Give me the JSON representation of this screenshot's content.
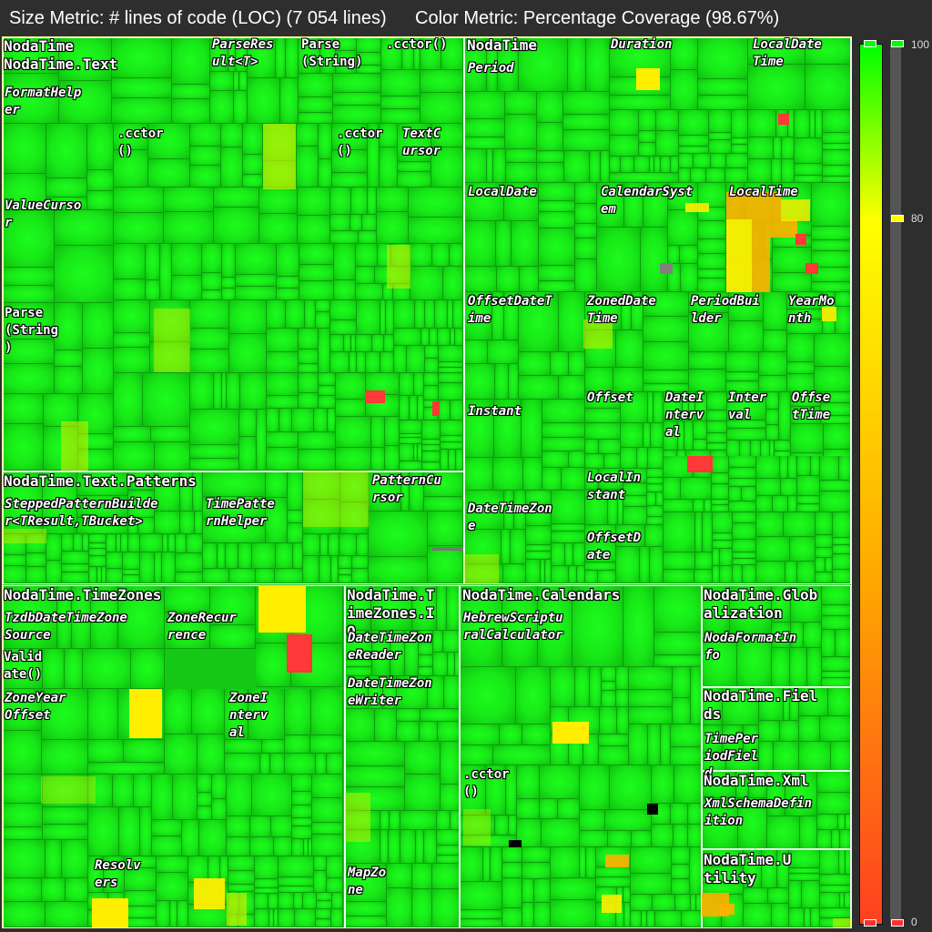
{
  "header": {
    "size_metric": "Size Metric: # lines of code (LOC) (7 054 lines)",
    "color_metric": "Color Metric: Percentage Coverage (98.67%)"
  },
  "namespaces": {
    "nodatime_text": "NodaTime\nNodaTime.Text",
    "nodatime_core": "NodaTime",
    "text_patterns": "NodaTime.Text.Patterns",
    "timezones": "NodaTime.TimeZones",
    "timezones_io": "NodaTime.T\nimeZones.I\nO",
    "calendars": "NodaTime.Calendars",
    "globalization": "NodaTime.Glob\nalization",
    "fields": "NodaTime.Fiel\nds",
    "xml": "NodaTime.Xml",
    "utility": "NodaTime.U\ntility"
  },
  "labels": {
    "format_helper": "FormatHelp\ner",
    "parse_result": "ParseRes\nult<T>",
    "parse_string_top": "Parse\n(String)",
    "cctor_top": ".cctor()",
    "cctor_left": ".cctor\n()",
    "cctor_mid": ".cctor\n()",
    "text_cursor": "TextC\nursor",
    "value_cursor": "ValueCurso\nr",
    "parse_string_left": "Parse\n(String\n)",
    "period": "Period",
    "duration": "Duration",
    "local_date_time": "LocalDate\nTime",
    "local_date": "LocalDate",
    "calendar_system": "CalendarSyst\nem",
    "local_time": "LocalTime",
    "offset_date_time": "OffsetDateT\nime",
    "zoned_date_time": "ZonedDate\nTime",
    "period_builder": "PeriodBui\nlder",
    "year_month": "YearMo\nnth",
    "instant": "Instant",
    "offset": "Offset",
    "date_interval": "DateI\nnterv\nal",
    "interval": "Inter\nval",
    "offset_time": "Offse\ntTime",
    "local_instant": "LocalIn\nstant",
    "date_time_zone": "DateTimeZon\ne",
    "offset_date": "OffsetD\nate",
    "stepped_pattern_builder": "SteppedPatternBuilde\nr<TResult,TBucket>",
    "time_pattern_helper": "TimePatte\nrnHelper",
    "pattern_cursor": "PatternCu\nrsor",
    "tzdb_source": "TzdbDateTimeZone\nSource",
    "zone_recurrence": "ZoneRecur\nrence",
    "validate": "Valid\nate()",
    "zone_year_offset": "ZoneYear\nOffset",
    "zone_interval": "ZoneI\nnterv\nal",
    "resolvers": "Resolv\ners",
    "dtz_reader": "DateTimeZon\neReader",
    "dtz_writer": "DateTimeZon\neWriter",
    "map_zone": "MapZo\nne",
    "hebrew_calc": "HebrewScriptu\nralCalculator",
    "cctor_cal": ".cctor\n()",
    "noda_format_info": "NodaFormatIn\nfo",
    "time_period_field": "TimePer\niodFiel\nd",
    "xml_schema": "XmlSchemaDefin\nition"
  },
  "legend": {
    "max_label": "100",
    "mid_label": "80",
    "min_label": "0",
    "mid_value_percent": 80,
    "colors": {
      "high": "#00ff00",
      "mid": "#ffff00",
      "low": "#ff4020"
    }
  }
}
